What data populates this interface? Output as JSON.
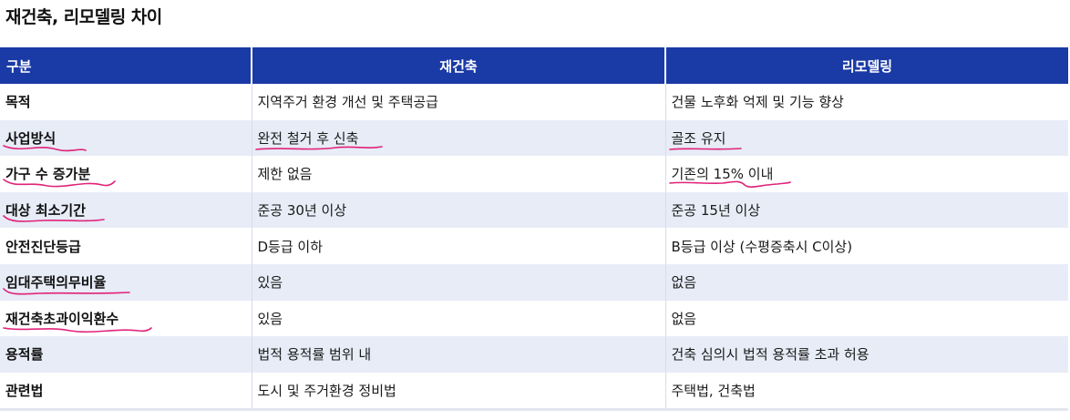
{
  "title": "재건축, 리모델링 차이",
  "table": {
    "headers": [
      "구분",
      "재건축",
      "리모델링"
    ],
    "rows": [
      [
        "목적",
        "지역주거 환경 개선 및 주택공급",
        "건물 노후화 억제 및 기능 향상"
      ],
      [
        "사업방식",
        "완전 철거 후 신축",
        "골조 유지"
      ],
      [
        "가구 수 증가분",
        "제한 없음",
        "기존의 15% 이내"
      ],
      [
        "대상 최소기간",
        "준공 30년 이상",
        "준공 15년 이상"
      ],
      [
        "안전진단등급",
        "D등급 이하",
        "B등급 이상 (수평증축시 C이상)"
      ],
      [
        "임대주택의무비율",
        "있음",
        "없음"
      ],
      [
        "재건축초과이익환수",
        "있음",
        "없음"
      ],
      [
        "용적률",
        "법적 용적률 범위 내",
        "건축 심의시 법적 용적률 초과 허용"
      ],
      [
        "관련법",
        "도시 및 주거환경 정비법",
        "주택법, 건축법"
      ]
    ]
  },
  "annotation_color": "#e0227a",
  "header_color": "#1a3aa6"
}
